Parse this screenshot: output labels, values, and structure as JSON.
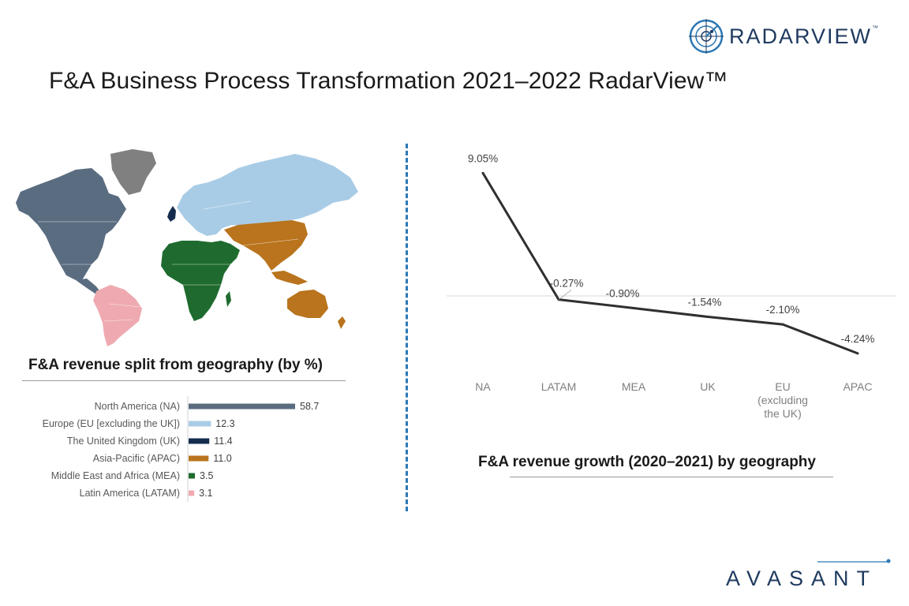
{
  "header": {
    "title": "F&A Business Process Transformation 2021–2022 RadarView™",
    "brand": "RADARVIEW",
    "brand_tm": "™"
  },
  "footer": {
    "brand": "AVASANT"
  },
  "colors": {
    "na": "#5a6c80",
    "eu": "#a9cce6",
    "uk": "#152c4e",
    "apac": "#b9741d",
    "mea": "#1f6b2f",
    "latam": "#eeaab0",
    "greenland": "#808080",
    "line": "#2f2f2f",
    "divider": "#2b78b5",
    "brand": "#1f3a5f"
  },
  "left_panel": {
    "caption": "F&A revenue split from geography (by %)"
  },
  "right_panel": {
    "caption": "F&A revenue growth (2020–2021) by geography"
  },
  "chart_data": [
    {
      "type": "bar",
      "orientation": "horizontal",
      "categories": [
        "North America (NA)",
        "Europe (EU [excluding the UK])",
        "The United Kingdom (UK)",
        "Asia-Pacific (APAC)",
        "Middle East and Africa (MEA)",
        "Latin America (LATAM)"
      ],
      "values": [
        58.7,
        12.3,
        11.4,
        11.0,
        3.5,
        3.1
      ],
      "value_labels": [
        "58.7",
        "12.3",
        "11.4",
        "11.0",
        "3.5",
        "3.1"
      ],
      "bar_colors": [
        "#5a6c80",
        "#a9cce6",
        "#152c4e",
        "#b9741d",
        "#1f6b2f",
        "#eeaab0"
      ],
      "title": "F&A revenue split from geography (by %)",
      "xlim": [
        0,
        60
      ],
      "grid": false,
      "legend": "none"
    },
    {
      "type": "line",
      "categories": [
        "NA",
        "LATAM",
        "MEA",
        "UK",
        "EU (excluding the UK)",
        "APAC"
      ],
      "category_lines": [
        [
          "NA"
        ],
        [
          "LATAM"
        ],
        [
          "MEA"
        ],
        [
          "UK"
        ],
        [
          "EU",
          "(excluding",
          "the UK)"
        ],
        [
          "APAC"
        ]
      ],
      "values": [
        9.05,
        -0.27,
        -0.9,
        -1.54,
        -2.1,
        -4.24
      ],
      "value_labels": [
        "9.05%",
        "-0.27%",
        "-0.90%",
        "-1.54%",
        "-2.10%",
        "-4.24%"
      ],
      "title": "F&A revenue growth (2020–2021) by geography",
      "ylim": [
        -5,
        10
      ],
      "zero_line": true,
      "grid": false,
      "legend": "none"
    }
  ]
}
